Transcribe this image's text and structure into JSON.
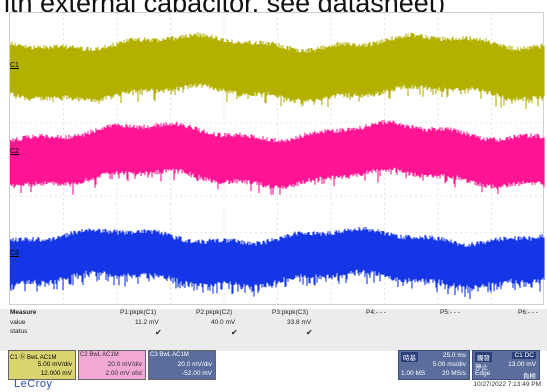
{
  "caption": "ith external capacitor, see datasheet)",
  "channels": [
    {
      "id": "C1",
      "color": "#b3b000"
    },
    {
      "id": "C2",
      "color": "#ff1493"
    },
    {
      "id": "C3",
      "color": "#1436e6"
    }
  ],
  "measure": {
    "title": "Measure",
    "row_labels": {
      "value": "value",
      "status": "status"
    },
    "params": [
      {
        "name": "P1:pkpk(C1)",
        "value": "11.2 mV",
        "status": "✔"
      },
      {
        "name": "P2:pkpk(C2)",
        "value": "40.0 mV",
        "status": "✔"
      },
      {
        "name": "P3:pkpk(C3)",
        "value": "33.8 mV",
        "status": "✔"
      },
      {
        "name": "P4:- - -",
        "value": "",
        "status": ""
      },
      {
        "name": "P5:- - -",
        "value": "",
        "status": ""
      },
      {
        "name": "P6:- - -",
        "value": "",
        "status": ""
      }
    ]
  },
  "channel_boxes": [
    {
      "tag": "C1 ⓑ BwL AC1M",
      "scale": "5.00 mV/div",
      "offset": "12.000 mV"
    },
    {
      "tag": "C2 BwL AC1M",
      "scale": "20.0 mV/div",
      "offset": "2.00 mV ofst"
    },
    {
      "tag": "C3 BwL AC1M",
      "scale": "20.0 mV/div",
      "offset": "-52.00 mV"
    }
  ],
  "timebase": {
    "header": "時基",
    "tdiv": "25.0 ms",
    "sdiv": "5.00 ms/div",
    "samples": "1.00 MS",
    "rate": "20 MS/s"
  },
  "trigger": {
    "header": "觸發",
    "channel": "C1 DC",
    "mode": "停止",
    "level": "13.00 mV",
    "type": "Edge",
    "slope": "負極"
  },
  "logo": "LeCroy",
  "timestamp": "10/27/2022 7:13:49 PM"
}
